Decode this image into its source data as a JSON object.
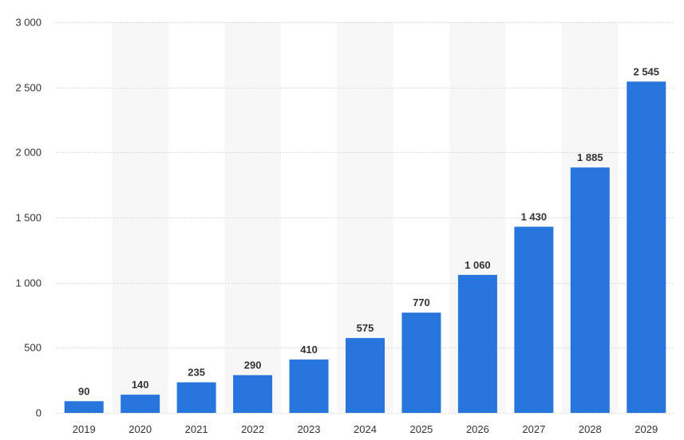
{
  "chart_data": {
    "type": "bar",
    "categories": [
      "2019",
      "2020",
      "2021",
      "2022",
      "2023",
      "2024",
      "2025",
      "2026",
      "2027",
      "2028",
      "2029"
    ],
    "values": [
      90,
      140,
      235,
      290,
      410,
      575,
      770,
      1060,
      1430,
      1885,
      2545
    ],
    "value_labels": [
      "90",
      "140",
      "235",
      "290",
      "410",
      "575",
      "770",
      "1 060",
      "1 430",
      "1 885",
      "2 545"
    ],
    "y_ticks": [
      0,
      500,
      1000,
      1500,
      2000,
      2500,
      3000
    ],
    "y_tick_labels": [
      "0",
      "500",
      "1 000",
      "1 500",
      "2 000",
      "2 500",
      "3 000"
    ],
    "ylim": [
      0,
      3000
    ],
    "title": "",
    "xlabel": "",
    "ylabel": "",
    "grid": true,
    "legend": "none",
    "colors": {
      "bar": "#2876dd",
      "alt_band": "#f7f7f7",
      "grid": "#c8c8c8",
      "text": "#333333"
    }
  }
}
